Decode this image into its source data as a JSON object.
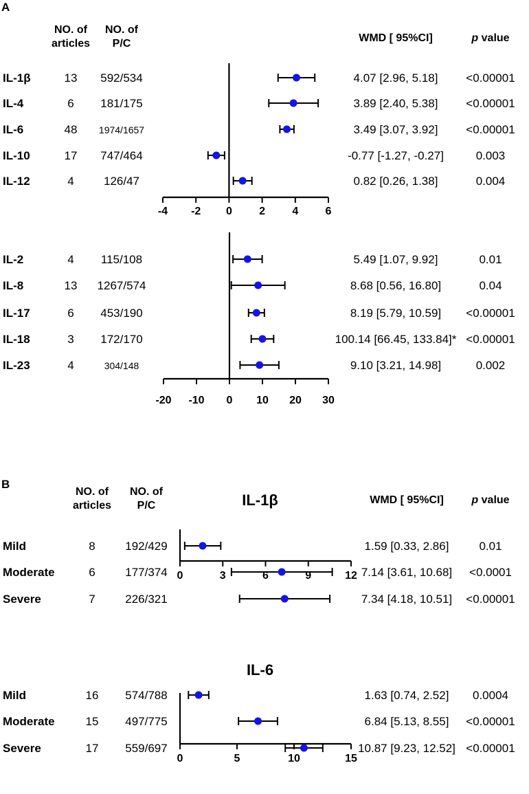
{
  "panel_a_label": "A",
  "panel_b_label": "B",
  "headers": {
    "articles": [
      "NO. of",
      "articles"
    ],
    "pc": [
      "NO. of",
      "P/C"
    ],
    "wmd": "WMD [ 95%CI]",
    "p_italic": "p",
    "p_rest": " value"
  },
  "chart_data": [
    {
      "id": "A1",
      "type": "forest",
      "xlim": [
        -4,
        6
      ],
      "xticks": [
        "-4",
        "-2",
        "0",
        "2",
        "4",
        "6"
      ],
      "rows": [
        {
          "label": "IL-1β",
          "articles": "13",
          "pc": "592/534",
          "wmd": 4.07,
          "lo": 2.96,
          "hi": 5.18,
          "ci_text": "4.07 [2.96, 5.18]",
          "p": "<0.00001"
        },
        {
          "label": "IL-4",
          "articles": "6",
          "pc": "181/175",
          "wmd": 3.89,
          "lo": 2.4,
          "hi": 5.38,
          "ci_text": "3.89 [2.40, 5.38]",
          "p": "<0.00001"
        },
        {
          "label": "IL-6",
          "articles": "48",
          "pc": "1974/1657",
          "wmd": 3.49,
          "lo": 3.07,
          "hi": 3.92,
          "ci_text": "3.49 [3.07, 3.92]",
          "p": "<0.00001"
        },
        {
          "label": "IL-10",
          "articles": "17",
          "pc": "747/464",
          "wmd": -0.77,
          "lo": -1.27,
          "hi": -0.27,
          "ci_text": "-0.77 [-1.27, -0.27]",
          "p": "0.003"
        },
        {
          "label": "IL-12",
          "articles": "4",
          "pc": "126/47",
          "wmd": 0.82,
          "lo": 0.26,
          "hi": 1.38,
          "ci_text": "0.82 [0.26, 1.38]",
          "p": "0.004"
        }
      ]
    },
    {
      "id": "A2",
      "type": "forest",
      "xlim": [
        -20,
        30
      ],
      "xticks": [
        "-20",
        "-10",
        "0",
        "10",
        "20",
        "30"
      ],
      "rows": [
        {
          "label": "IL-2",
          "articles": "4",
          "pc": "115/108",
          "wmd": 5.49,
          "lo": 1.07,
          "hi": 9.92,
          "ci_text": "5.49 [1.07, 9.92]",
          "p": "0.01"
        },
        {
          "label": "IL-8",
          "articles": "13",
          "pc": "1267/574",
          "wmd": 8.68,
          "lo": 0.56,
          "hi": 16.8,
          "ci_text": "8.68 [0.56, 16.80]",
          "p": "0.04"
        },
        {
          "label": "IL-17",
          "articles": "6",
          "pc": "453/190",
          "wmd": 8.19,
          "lo": 5.79,
          "hi": 10.59,
          "ci_text": "8.19 [5.79, 10.59]",
          "p": "<0.00001"
        },
        {
          "label": "IL-18",
          "articles": "3",
          "pc": "172/170",
          "wmd": 100.14,
          "lo": 66.45,
          "hi": 133.84,
          "ci_text": "100.14 [66.45, 133.84]*",
          "p": "<0.00001",
          "plot_wmd": 10.0,
          "plot_lo": 6.6,
          "plot_hi": 13.4
        },
        {
          "label": "IL-23",
          "articles": "4",
          "pc": "304/148",
          "wmd": 9.1,
          "lo": 3.21,
          "hi": 14.98,
          "ci_text": "9.10 [3.21, 14.98]",
          "p": "0.002"
        }
      ]
    },
    {
      "id": "B1",
      "type": "forest",
      "title": "IL-1β",
      "xlim": [
        0,
        12
      ],
      "xticks": [
        "0",
        "3",
        "6",
        "9",
        "12"
      ],
      "rows": [
        {
          "label": "Mild",
          "articles": "8",
          "pc": "192/429",
          "wmd": 1.59,
          "lo": 0.33,
          "hi": 2.86,
          "ci_text": "1.59 [0.33, 2.86]",
          "p": "0.01"
        },
        {
          "label": "Moderate",
          "articles": "6",
          "pc": "177/374",
          "wmd": 7.14,
          "lo": 3.61,
          "hi": 10.68,
          "ci_text": "7.14 [3.61, 10.68]",
          "p": "<0.0001"
        },
        {
          "label": "Severe",
          "articles": "7",
          "pc": "226/321",
          "wmd": 7.34,
          "lo": 4.18,
          "hi": 10.51,
          "ci_text": "7.34 [4.18, 10.51]",
          "p": "<0.00001"
        }
      ]
    },
    {
      "id": "B2",
      "type": "forest",
      "title": "IL-6",
      "xlim": [
        0,
        15
      ],
      "xticks": [
        "0",
        "5",
        "10",
        "15"
      ],
      "rows": [
        {
          "label": "Mild",
          "articles": "16",
          "pc": "574/788",
          "wmd": 1.63,
          "lo": 0.74,
          "hi": 2.52,
          "ci_text": "1.63 [0.74, 2.52]",
          "p": "0.0004"
        },
        {
          "label": "Moderate",
          "articles": "15",
          "pc": "497/775",
          "wmd": 6.84,
          "lo": 5.13,
          "hi": 8.55,
          "ci_text": "6.84 [5.13, 8.55]",
          "p": "<0.00001"
        },
        {
          "label": "Severe",
          "articles": "17",
          "pc": "559/697",
          "wmd": 10.87,
          "lo": 9.23,
          "hi": 12.52,
          "ci_text": "10.87 [9.23, 12.52]",
          "p": "<0.00001"
        }
      ]
    }
  ],
  "colors": {
    "point": "#1414e6",
    "line": "#000000"
  }
}
